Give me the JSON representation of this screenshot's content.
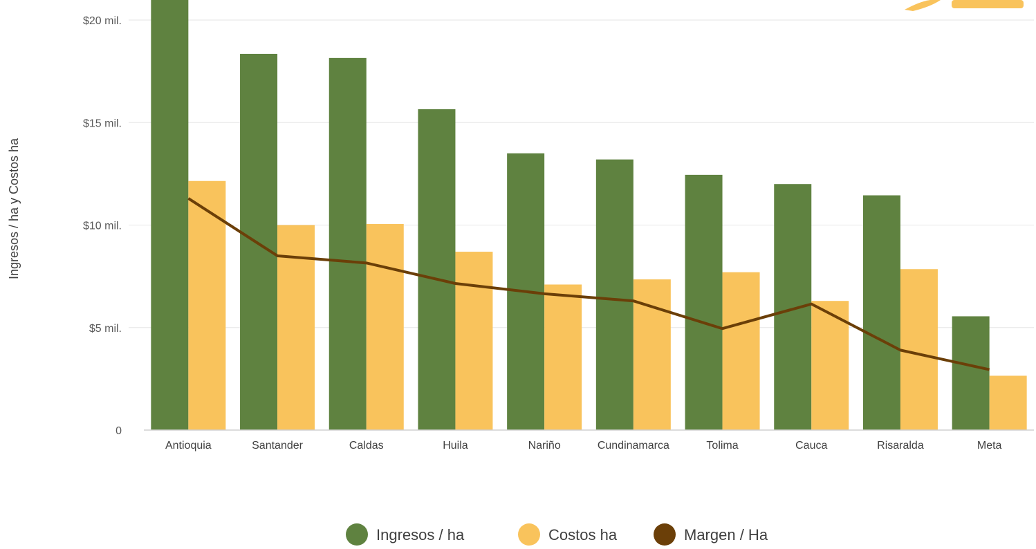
{
  "chart_data": {
    "type": "bar",
    "ylabel": "Ingresos / ha y Costos ha",
    "xlabel": "",
    "ylim": [
      0,
      20000000
    ],
    "yticks": [
      {
        "value": 0,
        "label": "0"
      },
      {
        "value": 5000000,
        "label": "$5 mil."
      },
      {
        "value": 10000000,
        "label": "$10 mil."
      },
      {
        "value": 15000000,
        "label": "$15 mil."
      },
      {
        "value": 20000000,
        "label": "$20 mil."
      }
    ],
    "categories": [
      "Antioquia",
      "Santander",
      "Caldas",
      "Huila",
      "Nariño",
      "Cundinamarca",
      "Tolima",
      "Cauca",
      "Risaralda",
      "Meta"
    ],
    "series": [
      {
        "name": "Ingresos / ha",
        "type": "bar",
        "color": "#5f8240",
        "values": [
          21000000,
          18350000,
          18150000,
          15650000,
          13500000,
          13200000,
          12450000,
          12000000,
          11450000,
          5550000
        ]
      },
      {
        "name": "Costos ha",
        "type": "bar",
        "color": "#f9c35c",
        "values": [
          12150000,
          10000000,
          10050000,
          8700000,
          7100000,
          7350000,
          7700000,
          6300000,
          7850000,
          2650000
        ]
      },
      {
        "name": "Margen / Ha",
        "type": "line",
        "color": "#6b3f08",
        "values": [
          11300000,
          8500000,
          8150000,
          7150000,
          6650000,
          6300000,
          4950000,
          6150000,
          3900000,
          2950000
        ]
      }
    ],
    "legend_position": "bottom",
    "grid": true
  }
}
